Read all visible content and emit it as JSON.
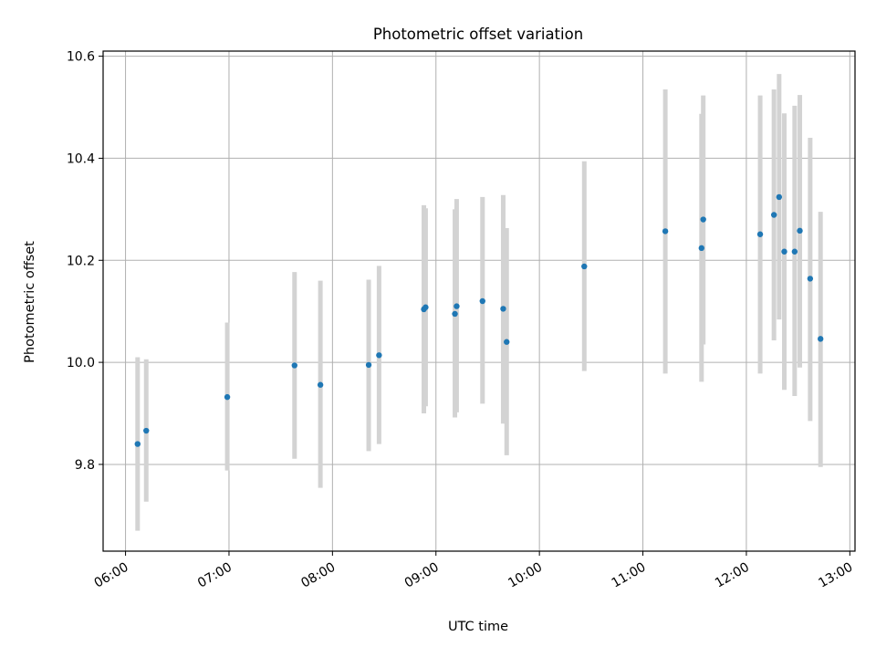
{
  "chart_data": {
    "type": "scatter",
    "title": "Photometric offset variation",
    "xlabel": "UTC time",
    "ylabel": "Photometric offset",
    "x_ticks": [
      "06:00",
      "07:00",
      "08:00",
      "09:00",
      "10:00",
      "11:00",
      "12:00",
      "13:00"
    ],
    "y_ticks": [
      "9.8",
      "10.0",
      "10.2",
      "10.4",
      "10.6"
    ],
    "xlim": [
      "05:47",
      "13:03"
    ],
    "ylim": [
      9.63,
      10.61
    ],
    "grid": true,
    "points": [
      {
        "x": "06:07",
        "y": 9.84,
        "low": 9.67,
        "high": 10.01
      },
      {
        "x": "06:12",
        "y": 9.866,
        "low": 9.727,
        "high": 10.006
      },
      {
        "x": "06:59",
        "y": 9.932,
        "low": 9.788,
        "high": 10.078
      },
      {
        "x": "07:38",
        "y": 9.994,
        "low": 9.811,
        "high": 10.177
      },
      {
        "x": "07:53",
        "y": 9.956,
        "low": 9.754,
        "high": 10.16
      },
      {
        "x": "08:21",
        "y": 9.995,
        "low": 9.826,
        "high": 10.162
      },
      {
        "x": "08:27",
        "y": 10.014,
        "low": 9.84,
        "high": 10.189
      },
      {
        "x": "08:53",
        "y": 10.104,
        "low": 9.9,
        "high": 10.308
      },
      {
        "x": "08:54",
        "y": 10.108,
        "low": 9.914,
        "high": 10.302
      },
      {
        "x": "09:11",
        "y": 10.095,
        "low": 9.892,
        "high": 10.3
      },
      {
        "x": "09:12",
        "y": 10.11,
        "low": 9.902,
        "high": 10.32
      },
      {
        "x": "09:27",
        "y": 10.12,
        "low": 9.919,
        "high": 10.324
      },
      {
        "x": "09:39",
        "y": 10.105,
        "low": 9.88,
        "high": 10.328
      },
      {
        "x": "09:41",
        "y": 10.04,
        "low": 9.818,
        "high": 10.263
      },
      {
        "x": "10:26",
        "y": 10.188,
        "low": 9.983,
        "high": 10.394
      },
      {
        "x": "11:13",
        "y": 10.257,
        "low": 9.978,
        "high": 10.535
      },
      {
        "x": "11:34",
        "y": 10.224,
        "low": 9.962,
        "high": 10.487
      },
      {
        "x": "11:35",
        "y": 10.28,
        "low": 10.035,
        "high": 10.523
      },
      {
        "x": "12:08",
        "y": 10.251,
        "low": 9.978,
        "high": 10.523
      },
      {
        "x": "12:16",
        "y": 10.289,
        "low": 10.043,
        "high": 10.535
      },
      {
        "x": "12:19",
        "y": 10.324,
        "low": 10.084,
        "high": 10.565
      },
      {
        "x": "12:22",
        "y": 10.217,
        "low": 9.946,
        "high": 10.488
      },
      {
        "x": "12:28",
        "y": 10.217,
        "low": 9.934,
        "high": 10.503
      },
      {
        "x": "12:31",
        "y": 10.258,
        "low": 9.99,
        "high": 10.524
      },
      {
        "x": "12:37",
        "y": 10.164,
        "low": 9.885,
        "high": 10.44
      },
      {
        "x": "12:43",
        "y": 10.046,
        "low": 9.795,
        "high": 10.295
      }
    ],
    "colors": {
      "point": "#1f77b4",
      "errorbar": "#d3d3d3",
      "grid": "#b0b0b0",
      "axis": "#000000"
    }
  }
}
